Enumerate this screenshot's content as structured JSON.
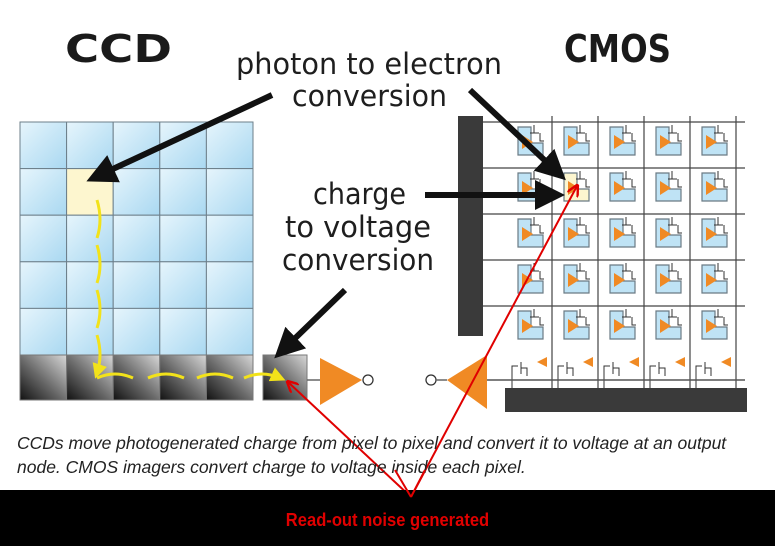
{
  "labels": {
    "ccd_title": "CCD",
    "cmos_title": "CMOS",
    "photon_line1": "photon to electron",
    "photon_line2": "conversion",
    "charge_line1": "charge",
    "charge_line2": "to voltage",
    "charge_line3": "conversion"
  },
  "caption": "CCDs move photogenerated charge from pixel to pixel and convert it to voltage at an output node. CMOS imagers convert charge to voltage inside each pixel.",
  "annotation": "Read-out noise generated",
  "colors": {
    "pixel_blue": "#bfe3f5",
    "highlight_pixel": "#fdf6cf",
    "amplifier": "#f08a24",
    "charge_path": "#f2e21a",
    "annotation_red": "#e00000",
    "band": "#000000"
  },
  "grid": {
    "ccd_rows": 5,
    "ccd_cols": 5,
    "cmos_rows": 5,
    "cmos_cols": 5
  }
}
